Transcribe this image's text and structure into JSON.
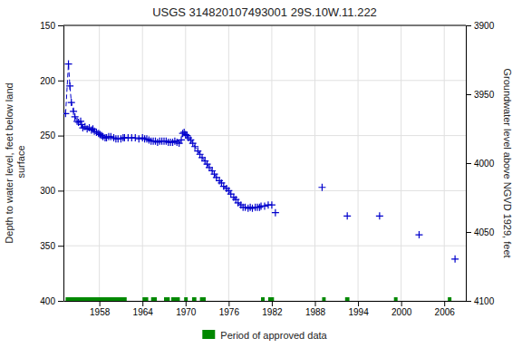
{
  "chart_data": {
    "type": "line",
    "title": "USGS 314820107493001 29S.10W.11.222",
    "y_label": "Depth to water level, feet below land\n surface",
    "y2_label": "Groundwater level above NGVD 1929, feet",
    "xlim": [
      1953,
      2009
    ],
    "xticks": [
      1958,
      1964,
      1970,
      1976,
      1982,
      1988,
      1994,
      2000,
      2006
    ],
    "ylim": [
      400,
      150
    ],
    "yticks": [
      150,
      200,
      250,
      300,
      350,
      400
    ],
    "y2lim": [
      4100,
      3900
    ],
    "y2ticks": [
      4100,
      4050,
      4000,
      3950,
      3900
    ],
    "grid": true,
    "legend": "bottom",
    "series": [
      {
        "type": "line",
        "color": "#0000cc",
        "marker": "plus",
        "line_style": "dashed",
        "x": [
          1953.3,
          1953.7,
          1953.9,
          1954.1,
          1954.4,
          1954.6,
          1954.9,
          1955.1,
          1955.4,
          1955.5,
          1955.7,
          1956.0,
          1956.3,
          1956.6,
          1956.9,
          1957.1,
          1957.3,
          1957.6,
          1957.9,
          1958.1,
          1958.3,
          1958.5,
          1958.8,
          1959.0,
          1959.3,
          1959.6,
          1960.0,
          1960.3,
          1960.6,
          1961.0,
          1961.3,
          1961.5,
          1962.0,
          1962.5,
          1963.0,
          1963.5,
          1964.0,
          1964.3,
          1964.6,
          1964.9,
          1965.2,
          1965.5,
          1965.8,
          1966.1,
          1966.4,
          1966.7,
          1967.0,
          1967.3,
          1967.6,
          1967.9,
          1968.2,
          1968.5,
          1968.8,
          1969.1,
          1969.4,
          1969.6,
          1969.8,
          1970.0,
          1970.2,
          1970.4,
          1970.7,
          1971.0,
          1971.3,
          1971.7,
          1972.0,
          1972.3,
          1972.7,
          1973.0,
          1973.3,
          1973.7,
          1974.0,
          1974.3,
          1974.7,
          1975.0,
          1975.3,
          1975.7,
          1976.0,
          1976.3,
          1976.7,
          1977.0,
          1977.3,
          1977.7,
          1978.0,
          1978.3,
          1978.7,
          1979.0,
          1979.3,
          1979.7,
          1980.0,
          1980.3,
          1980.5,
          1981.0,
          1981.5,
          1982.0
        ],
        "values": [
          230,
          185,
          205,
          220,
          228,
          233,
          237,
          238,
          237,
          240,
          243,
          242,
          244,
          243,
          245,
          244,
          246,
          247,
          248,
          249,
          250,
          251,
          252,
          252,
          251,
          251,
          252,
          253,
          253,
          253,
          252,
          252,
          252,
          252,
          252,
          253,
          252,
          253,
          253,
          254,
          255,
          255,
          255,
          256,
          255,
          255,
          255,
          255,
          256,
          256,
          256,
          255,
          256,
          257,
          254,
          248,
          247,
          249,
          250,
          252,
          254,
          257,
          260,
          264,
          267,
          270,
          273,
          276,
          279,
          282,
          285,
          288,
          291,
          293,
          296,
          298,
          300,
          303,
          306,
          308,
          311,
          313,
          315,
          315,
          316,
          315,
          316,
          315,
          315,
          315,
          314,
          314,
          313,
          313
        ]
      },
      {
        "type": "scatter",
        "color": "#0000cc",
        "marker": "plus",
        "x": [
          1982.5,
          1989.0,
          1992.5,
          1997.0,
          2002.5,
          2007.5
        ],
        "values": [
          320,
          297,
          323,
          323,
          340,
          362
        ]
      },
      {
        "type": "range",
        "name": "Period of approved data",
        "color": "#008800",
        "x_start": [
          1953.3,
          1964.0,
          1965.2,
          1967.0,
          1968.0,
          1969.8,
          1970.9,
          1972.0,
          1980.5,
          1981.5,
          1989.0,
          1992.2,
          1999.0,
          2006.5
        ],
        "x_end": [
          1961.8,
          1964.8,
          1966.0,
          1967.8,
          1969.2,
          1970.3,
          1971.5,
          1972.8,
          1981.0,
          1982.3,
          1989.5,
          1992.8,
          1999.5,
          2007.0
        ],
        "values": [
          400,
          400,
          400,
          400,
          400,
          400,
          400,
          400,
          400,
          400,
          400,
          400,
          400,
          400
        ]
      }
    ]
  }
}
